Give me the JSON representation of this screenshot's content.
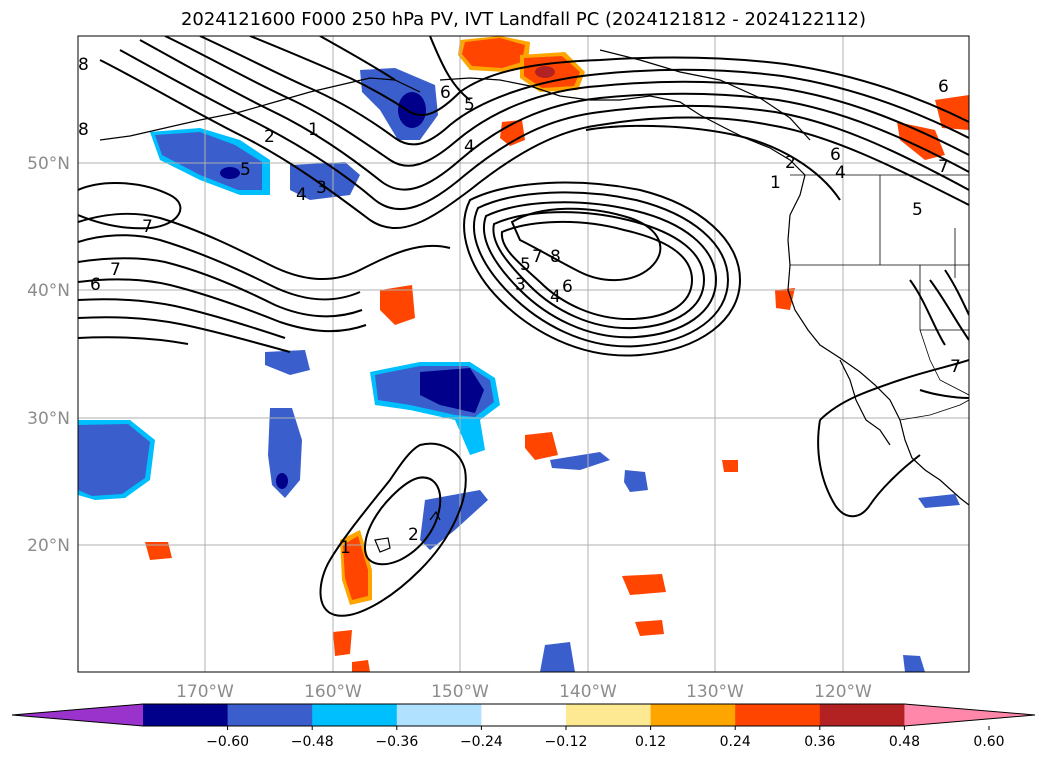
{
  "title": "2024121600 F000 250 hPa PV, IVT Landfall PC (2024121812 - 2024122112)",
  "lon_ticks": [
    "170°W",
    "160°W",
    "150°W",
    "140°W",
    "130°W",
    "120°W"
  ],
  "lat_ticks": [
    "50°N",
    "40°N",
    "30°N",
    "20°N"
  ],
  "colorbar": {
    "ticks": [
      "−0.60",
      "−0.48",
      "−0.36",
      "−0.24",
      "−0.12",
      "0.12",
      "0.24",
      "0.36",
      "0.48",
      "0.60"
    ],
    "colors": [
      "#9933cc",
      "#00008b",
      "#3a5fcd",
      "#00bfff",
      "#b0e2ff",
      "#ffffff",
      "#fde992",
      "#ffa500",
      "#ff4500",
      "#b22222",
      "#ff88aa"
    ]
  },
  "contour_labels": [
    "8",
    "8",
    "1",
    "2",
    "5",
    "4",
    "3",
    "7",
    "7",
    "6",
    "6",
    "5",
    "4",
    "5",
    "3",
    "4",
    "8",
    "7",
    "6",
    "6",
    "6",
    "4",
    "1",
    "2",
    "7",
    "5",
    "7",
    "2",
    "1"
  ]
}
